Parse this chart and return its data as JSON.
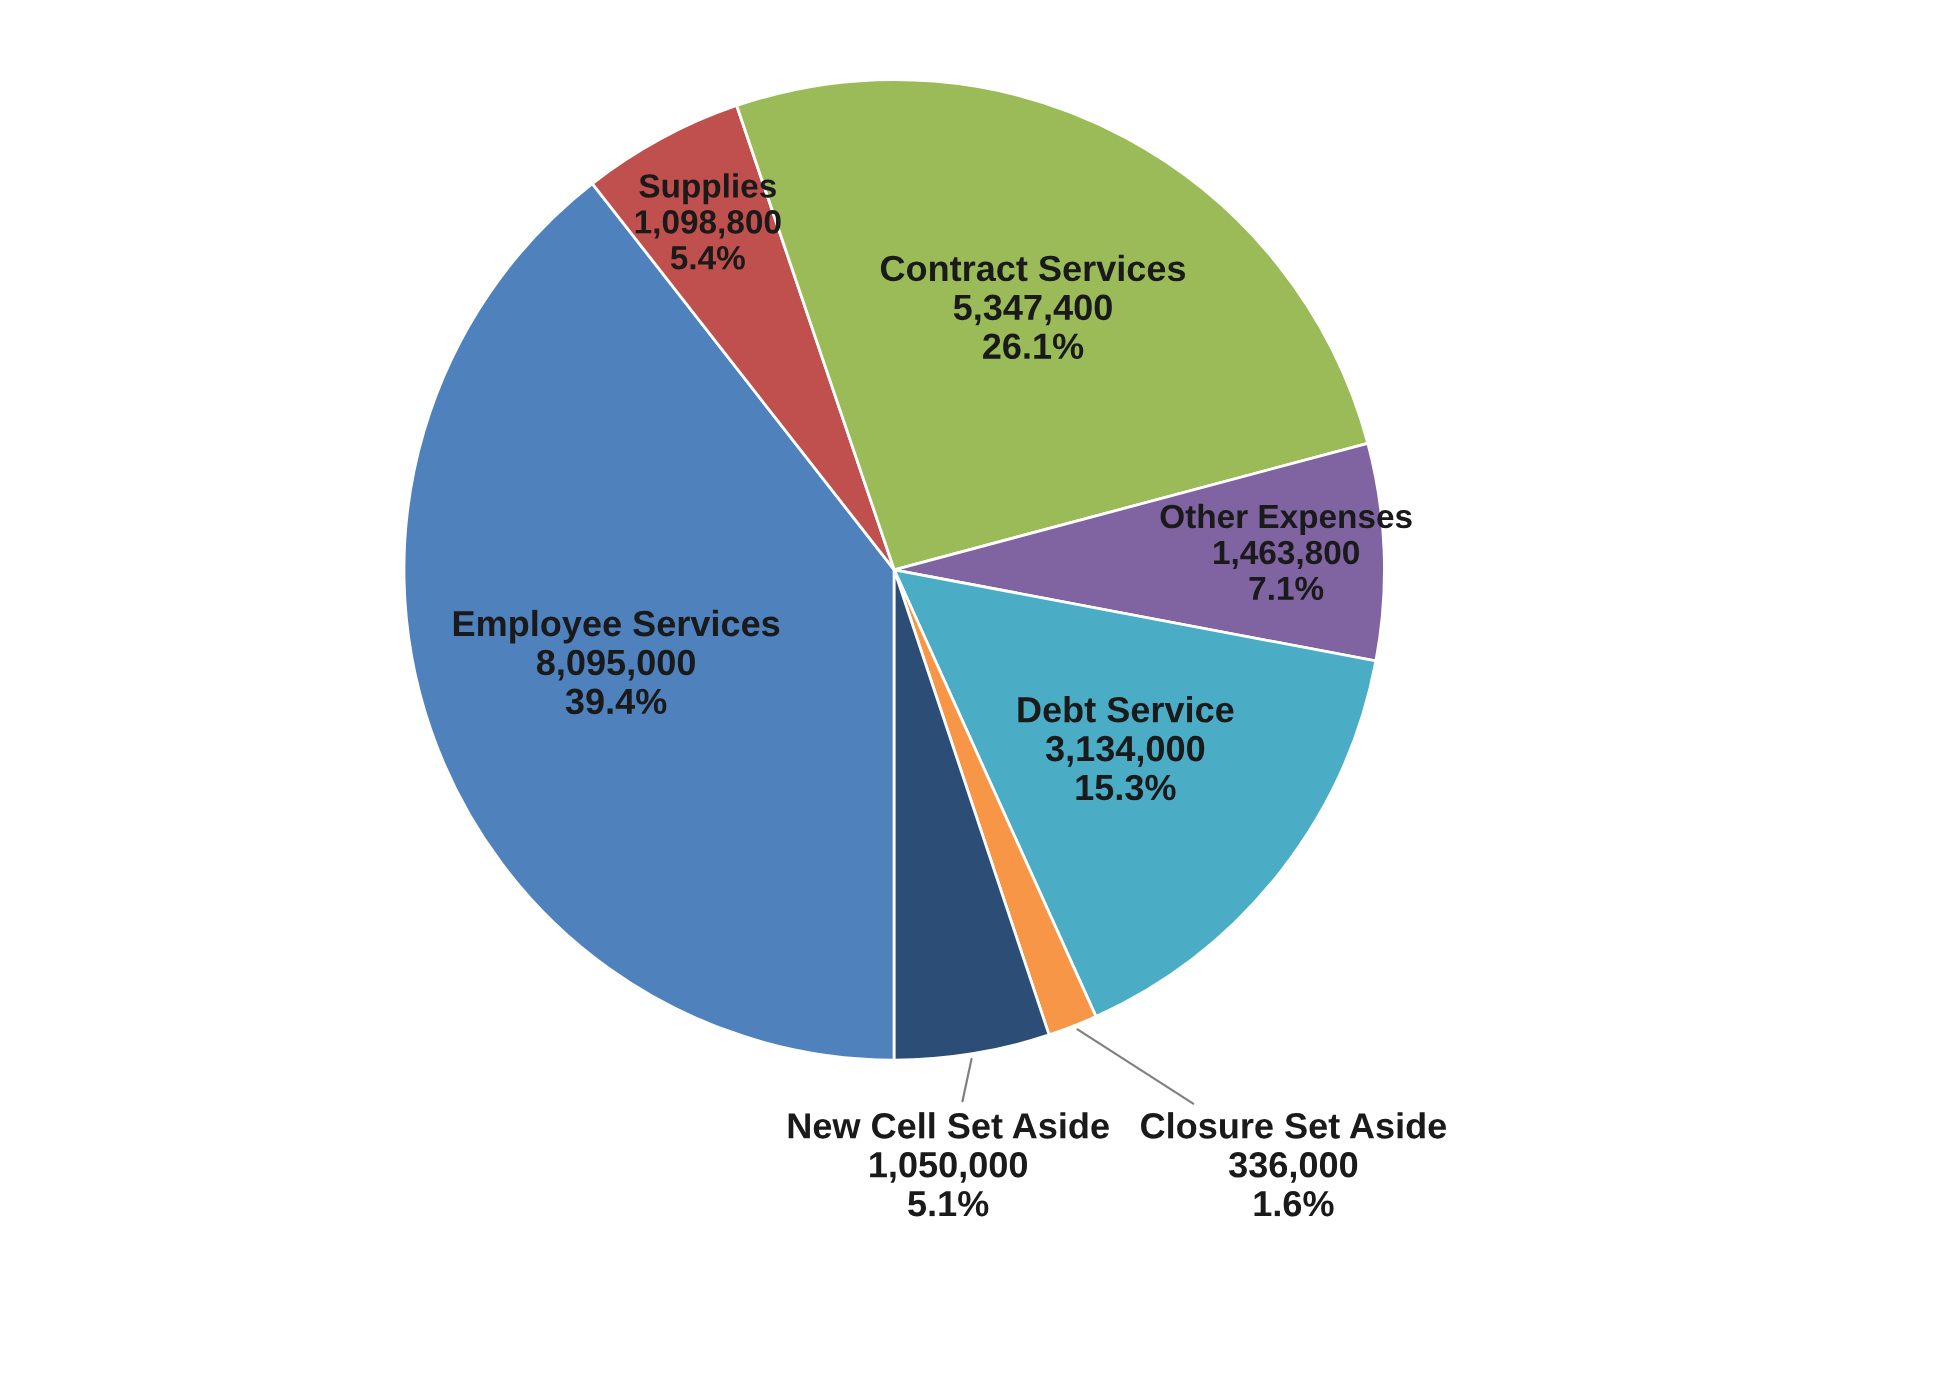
{
  "chart_data": {
    "type": "pie",
    "categories": [
      "Employee Services",
      "Supplies",
      "Contract Services",
      "Other Expenses",
      "Debt Service",
      "Closure Set Aside",
      "New Cell Set Aside"
    ],
    "values": [
      8095000,
      1098800,
      5347400,
      1463800,
      3134000,
      336000,
      1050000
    ],
    "colors": [
      "#4f81bd",
      "#c0504d",
      "#9bbb59",
      "#8064a2",
      "#4bacc6",
      "#f79646",
      "#2c4d75"
    ],
    "value_labels": [
      "8,095,000\n39.4%",
      "1,098,800\n5.4%",
      "5,347,400\n26.1%",
      "1,463,800\n7.1%",
      "3,134,000\n15.3%",
      "336,000\n1.6%",
      "1,050,000\n5.1%"
    ]
  }
}
